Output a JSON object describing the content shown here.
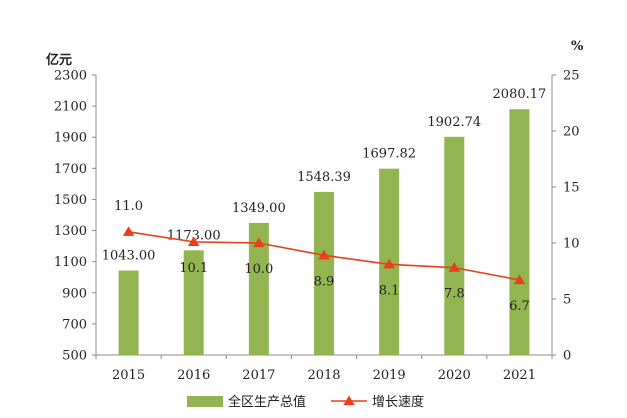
{
  "chart_data": {
    "type": "bar",
    "categories": [
      "2015",
      "2016",
      "2017",
      "2018",
      "2019",
      "2020",
      "2021"
    ],
    "series": [
      {
        "name": "全区生产总值",
        "type": "bar",
        "axis": "left",
        "values": [
          1043.0,
          1173.0,
          1349.0,
          1548.39,
          1697.82,
          1902.74,
          2080.17
        ],
        "labels": [
          "1043.00",
          "1173.00",
          "1349.00",
          "1548.39",
          "1697.82",
          "1902.74",
          "2080.17"
        ],
        "color": "#92b552"
      },
      {
        "name": "增长速度",
        "type": "line",
        "axis": "right",
        "values": [
          11.0,
          10.1,
          10.0,
          8.9,
          8.1,
          7.8,
          6.7
        ],
        "labels": [
          "11.0",
          "10.1",
          "10.0",
          "8.9",
          "8.1",
          "7.8",
          "6.7"
        ],
        "color": "#e8401c"
      }
    ],
    "y_left": {
      "label": "亿元",
      "ylim": [
        500,
        2300
      ],
      "ticks": [
        "500",
        "700",
        "900",
        "1100",
        "1300",
        "1500",
        "1700",
        "1900",
        "2100",
        "2300"
      ]
    },
    "y_right": {
      "label": "%",
      "ylim": [
        0,
        25
      ],
      "ticks": [
        "0",
        "5",
        "10",
        "15",
        "20",
        "25"
      ]
    },
    "grid": false,
    "legend": "bottom"
  }
}
